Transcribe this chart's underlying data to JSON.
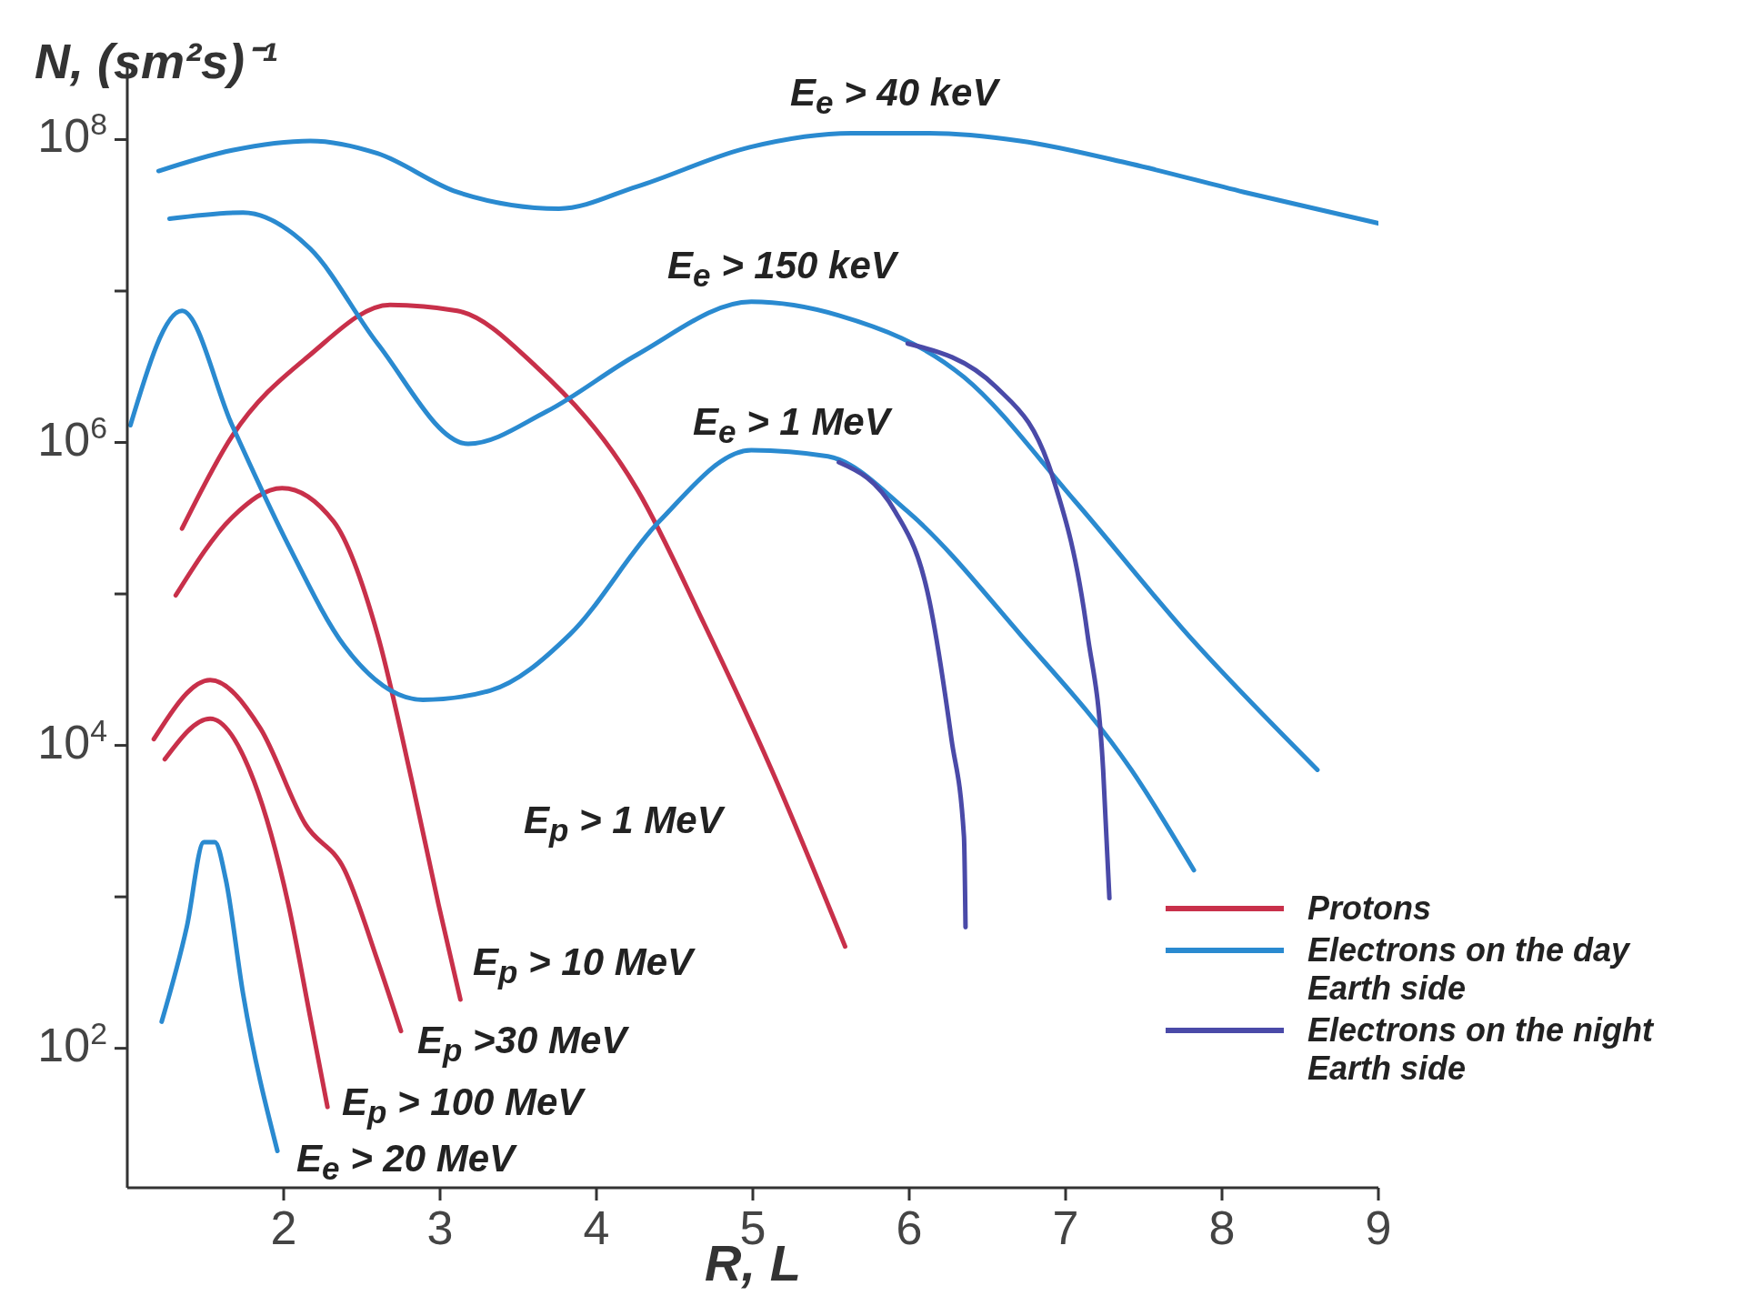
{
  "chart_data": {
    "type": "line",
    "xlabel": "R, L",
    "ylabel": "N, (sm²s)⁻¹",
    "log": "y",
    "grid": false,
    "legend": "bottom right",
    "line_style": "solid",
    "marker": "none",
    "xlim": [
      1,
      9
    ],
    "xticks": [
      2,
      3,
      4,
      5,
      6,
      7,
      8,
      9
    ],
    "ylim": [
      12,
      300000000
    ],
    "yticks": [
      {
        "value": 100,
        "label": "10$^{2}$"
      },
      {
        "value": 1000,
        "label": null
      },
      {
        "value": 10000,
        "label": "10$^{4}$"
      },
      {
        "value": 100000,
        "label": null
      },
      {
        "value": 1000000,
        "label": "10$^{6}$"
      },
      {
        "value": 10000000,
        "label": null
      },
      {
        "value": 100000000,
        "label": "10$^{8}$"
      }
    ],
    "series": [
      {
        "name": "Protons",
        "color": "#c8304a",
        "x": [
          1.35,
          1.67,
          2.17,
          2.68,
          3.11,
          3.61,
          4.26,
          4.69,
          5.12,
          5.59
        ],
        "values": [
          270000,
          1100000,
          3800000,
          8100000,
          7400000,
          3200000,
          490000,
          63000,
          6900,
          470
        ]
      },
      {
        "color": "#c8304a",
        "x": [
          1.31,
          1.67,
          1.99,
          2.32,
          2.6,
          2.82,
          2.99,
          3.13
        ],
        "values": [
          98000,
          320000,
          500000,
          300000,
          54000,
          5800,
          890,
          210
        ]
      },
      {
        "color": "#c8304a",
        "x": [
          1.17,
          1.53,
          1.85,
          2.14,
          2.39,
          2.6,
          2.75
        ],
        "values": [
          11000,
          27000,
          13000,
          3000,
          1500,
          380,
          130
        ]
      },
      {
        "color": "#c8304a",
        "x": [
          1.24,
          1.53,
          1.81,
          2.03,
          2.17,
          2.28
        ],
        "values": [
          8100,
          15000,
          5800,
          890,
          160,
          41
        ]
      },
      {
        "name": "Electrons on the day Earth side",
        "color": "#2a8ad0",
        "x": [
          1.2,
          1.67,
          2.17,
          2.6,
          3.11,
          3.76,
          4.26,
          4.98,
          5.63,
          6.13,
          6.71,
          7.42,
          8.14,
          9.0
        ],
        "values": [
          62000000,
          85000000,
          98000000,
          81000000,
          45000000,
          35000000,
          49000000,
          89000000,
          110000000,
          110000000,
          98000000,
          69000000,
          45000000,
          28000000
        ]
      },
      {
        "color": "#2a8ad0",
        "x": [
          1.27,
          1.74,
          2.17,
          2.6,
          3.18,
          3.68,
          4.26,
          4.99,
          5.55,
          6.35,
          7.06,
          7.78,
          8.61
        ],
        "values": [
          30000000,
          33000000,
          19000000,
          4500000,
          980000,
          1600000,
          3800000,
          8500000,
          6900000,
          2700000,
          410000,
          54000,
          6900
        ]
      },
      {
        "color": "#2a8ad0",
        "x": [
          1.02,
          1.35,
          1.67,
          2.03,
          2.39,
          2.89,
          3.32,
          3.83,
          4.4,
          4.99,
          5.48,
          5.99,
          6.71,
          7.42,
          7.82
        ],
        "values": [
          1300000,
          7400000,
          1300000,
          210000,
          45000,
          20000,
          23000,
          54000,
          300000,
          890000,
          810000,
          350000,
          54000,
          6900,
          1500
        ]
      },
      {
        "color": "#2a8ad0",
        "x": [
          1.22,
          1.38,
          1.49,
          1.56,
          1.63,
          1.74,
          1.96
        ],
        "values": [
          150,
          630,
          2300,
          2300,
          1300,
          230,
          21
        ]
      },
      {
        "name": "Electrons on the night Earth side",
        "color": "#4a4aa8",
        "x": [
          5.99,
          6.56,
          6.92,
          7.14,
          7.24,
          7.28
        ],
        "values": [
          4500000,
          2300000,
          580000,
          54000,
          6900,
          980
        ]
      },
      {
        "color": "#4a4aa8",
        "x": [
          5.55,
          5.91,
          6.13,
          6.27,
          6.35,
          6.36
        ],
        "values": [
          740000,
          350000,
          89000,
          11000,
          2500,
          630
        ]
      }
    ],
    "annotations": [
      "E$_{e}$ > 40 keV",
      "E$_{e}$ > 150 keV",
      "E$_{e}$ > 1 MeV",
      "E$_{p}$ > 1 MeV",
      "E$_{p}$ > 10 MeV",
      "E$_{p}$ >30 MeV",
      "E$_{p}$ > 100 MeV",
      "E$_{e}$ > 20 MeV"
    ]
  }
}
